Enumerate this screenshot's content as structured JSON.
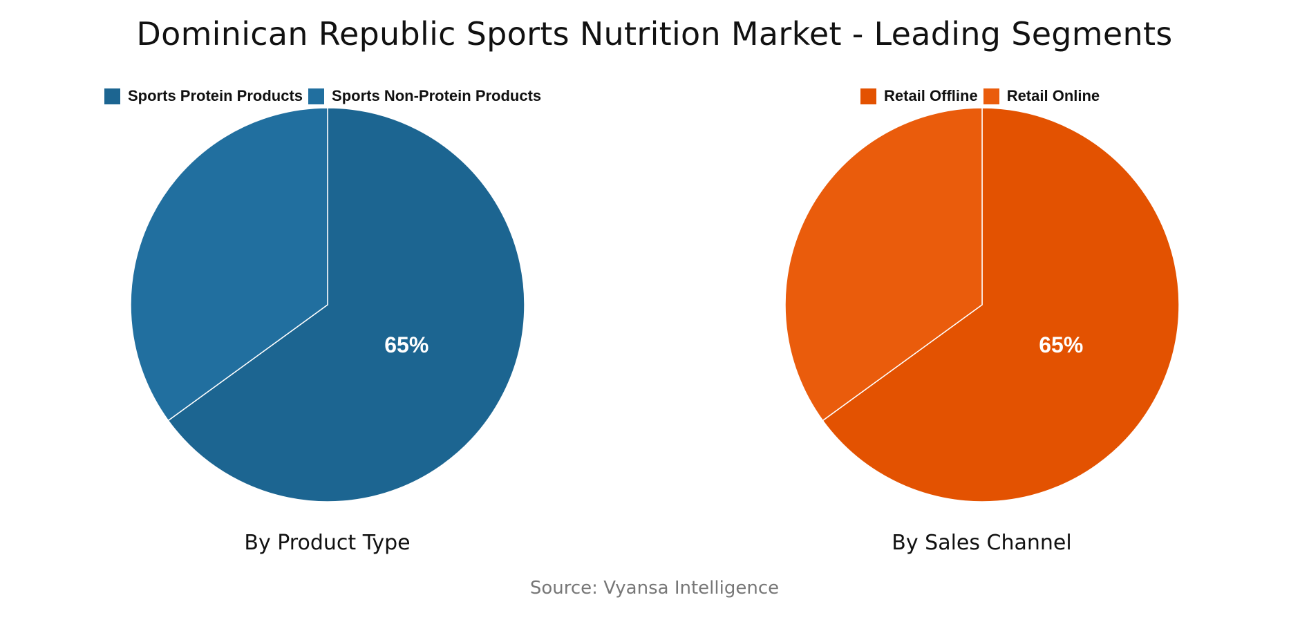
{
  "title": "Dominican Republic Sports Nutrition Market - Leading Segments",
  "source": "Source: Vyansa Intelligence",
  "chart_data": [
    {
      "type": "pie",
      "title": "By Product Type",
      "legend_position": "top",
      "slices": [
        {
          "label": "Sports Protein Products",
          "value": 65,
          "display": "65%",
          "color": "#1c6591"
        },
        {
          "label": "Sports Non-Protein Products",
          "value": 35,
          "display": "",
          "color": "#216f9f"
        }
      ]
    },
    {
      "type": "pie",
      "title": "By Sales Channel",
      "legend_position": "top",
      "slices": [
        {
          "label": "Retail Offline",
          "value": 65,
          "display": "65%",
          "color": "#e35201"
        },
        {
          "label": "Retail Online",
          "value": 35,
          "display": "",
          "color": "#ea5c0c"
        }
      ]
    }
  ]
}
